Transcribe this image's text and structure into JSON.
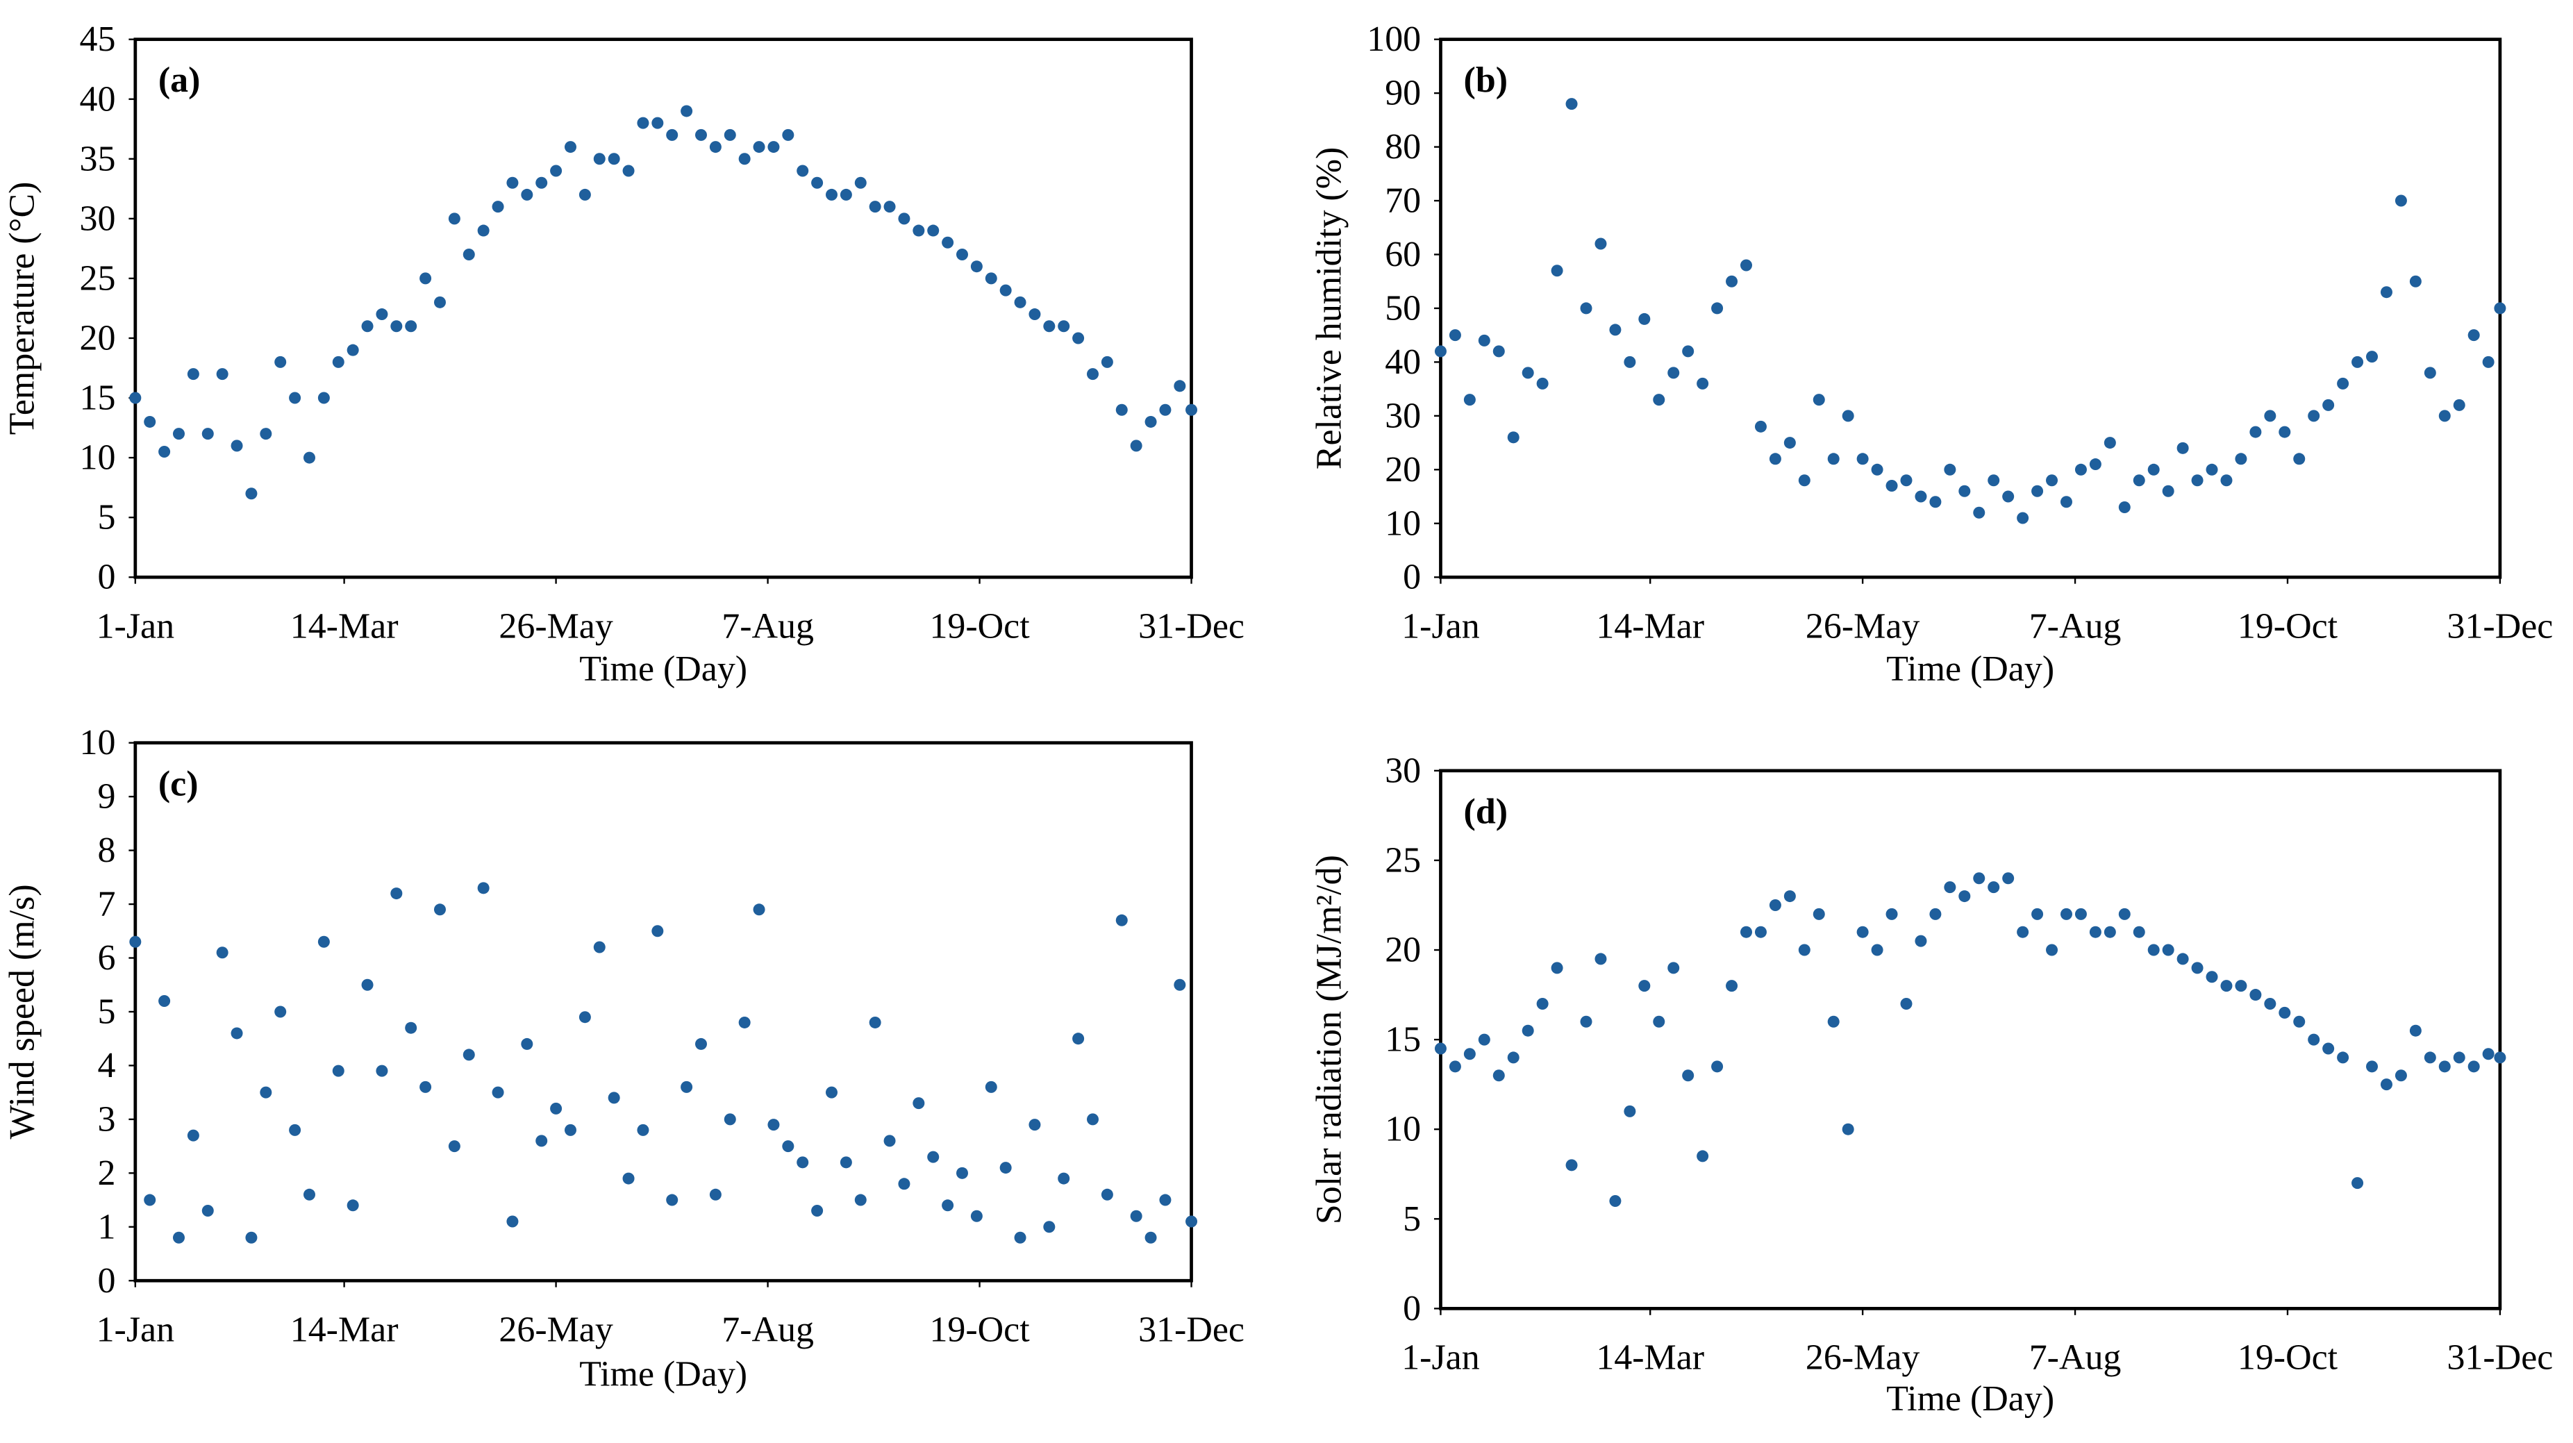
{
  "chart_data": [
    {
      "type": "scatter",
      "label": "(a)",
      "x_label": "Time (Day)",
      "y_label": "Temperature (°C)",
      "color": "#1f5f9c",
      "x": [
        1,
        6,
        11,
        16,
        21,
        26,
        31,
        36,
        41,
        46,
        51,
        56,
        61,
        66,
        71,
        76,
        81,
        86,
        91,
        96,
        101,
        106,
        111,
        116,
        121,
        126,
        131,
        136,
        141,
        146,
        151,
        156,
        161,
        166,
        171,
        176,
        181,
        186,
        191,
        196,
        201,
        206,
        211,
        216,
        221,
        226,
        231,
        236,
        241,
        246,
        251,
        256,
        261,
        266,
        271,
        276,
        281,
        286,
        291,
        296,
        301,
        306,
        311,
        316,
        321,
        326,
        331,
        336,
        341,
        346,
        351,
        356,
        361,
        365
      ],
      "values": [
        15,
        13,
        10.5,
        12,
        17,
        12,
        17,
        11,
        7,
        12,
        18,
        15,
        10,
        15,
        18,
        19,
        21,
        22,
        21,
        21,
        25,
        23,
        30,
        27,
        29,
        31,
        33,
        32,
        33,
        34,
        36,
        32,
        35,
        35,
        34,
        38,
        38,
        37,
        39,
        37,
        36,
        37,
        35,
        36,
        36,
        37,
        34,
        33,
        32,
        32,
        33,
        31,
        31,
        30,
        29,
        29,
        28,
        27,
        26,
        25,
        24,
        23,
        22,
        21,
        21,
        20,
        17,
        18,
        14,
        11,
        13,
        14,
        16,
        14
      ],
      "xlim": [
        1,
        365
      ],
      "ylim": [
        0,
        45
      ],
      "xticks": [
        {
          "value": 1,
          "label": "1-Jan"
        },
        {
          "value": 73,
          "label": "14-Mar"
        },
        {
          "value": 146,
          "label": "26-May"
        },
        {
          "value": 219,
          "label": "7-Aug"
        },
        {
          "value": 292,
          "label": "19-Oct"
        },
        {
          "value": 365,
          "label": "31-Dec"
        }
      ],
      "yticks": [
        0,
        5,
        10,
        15,
        20,
        25,
        30,
        35,
        40,
        45
      ]
    },
    {
      "type": "scatter",
      "label": "(b)",
      "x_label": "Time (Day)",
      "y_label": "Relative humidity (%)",
      "color": "#1f5f9c",
      "x": [
        1,
        6,
        11,
        16,
        21,
        26,
        31,
        36,
        41,
        46,
        51,
        56,
        61,
        66,
        71,
        76,
        81,
        86,
        91,
        96,
        101,
        106,
        111,
        116,
        121,
        126,
        131,
        136,
        141,
        146,
        151,
        156,
        161,
        166,
        171,
        176,
        181,
        186,
        191,
        196,
        201,
        206,
        211,
        216,
        221,
        226,
        231,
        236,
        241,
        246,
        251,
        256,
        261,
        266,
        271,
        276,
        281,
        286,
        291,
        296,
        301,
        306,
        311,
        316,
        321,
        326,
        331,
        336,
        341,
        346,
        351,
        356,
        361,
        365
      ],
      "values": [
        42,
        45,
        33,
        44,
        42,
        26,
        38,
        36,
        57,
        88,
        50,
        62,
        46,
        40,
        48,
        33,
        38,
        42,
        36,
        50,
        55,
        58,
        28,
        22,
        25,
        18,
        33,
        22,
        30,
        22,
        20,
        17,
        18,
        15,
        14,
        20,
        16,
        12,
        18,
        15,
        11,
        16,
        18,
        14,
        20,
        21,
        25,
        13,
        18,
        20,
        16,
        24,
        18,
        20,
        18,
        22,
        27,
        30,
        27,
        22,
        30,
        32,
        36,
        40,
        41,
        53,
        70,
        55,
        38,
        30,
        32,
        45,
        40,
        50
      ],
      "xlim": [
        1,
        365
      ],
      "ylim": [
        0,
        100
      ],
      "xticks": [
        {
          "value": 1,
          "label": "1-Jan"
        },
        {
          "value": 73,
          "label": "14-Mar"
        },
        {
          "value": 146,
          "label": "26-May"
        },
        {
          "value": 219,
          "label": "7-Aug"
        },
        {
          "value": 292,
          "label": "19-Oct"
        },
        {
          "value": 365,
          "label": "31-Dec"
        }
      ],
      "yticks": [
        0,
        10,
        20,
        30,
        40,
        50,
        60,
        70,
        80,
        90,
        100
      ]
    },
    {
      "type": "scatter",
      "label": "(c)",
      "x_label": "Time (Day)",
      "y_label": "Wind speed (m/s)",
      "color": "#1f5f9c",
      "x": [
        1,
        6,
        11,
        16,
        21,
        26,
        31,
        36,
        41,
        46,
        51,
        56,
        61,
        66,
        71,
        76,
        81,
        86,
        91,
        96,
        101,
        106,
        111,
        116,
        121,
        126,
        131,
        136,
        141,
        146,
        151,
        156,
        161,
        166,
        171,
        176,
        181,
        186,
        191,
        196,
        201,
        206,
        211,
        216,
        221,
        226,
        231,
        236,
        241,
        246,
        251,
        256,
        261,
        266,
        271,
        276,
        281,
        286,
        291,
        296,
        301,
        306,
        311,
        316,
        321,
        326,
        331,
        336,
        341,
        346,
        351,
        356,
        361,
        365
      ],
      "values": [
        6.3,
        1.5,
        5.2,
        0.8,
        2.7,
        1.3,
        6.1,
        4.6,
        0.8,
        3.5,
        5.0,
        2.8,
        1.6,
        6.3,
        3.9,
        1.4,
        5.5,
        3.9,
        7.2,
        4.7,
        3.6,
        6.9,
        2.5,
        4.2,
        7.3,
        3.5,
        1.1,
        4.4,
        2.6,
        3.2,
        2.8,
        4.9,
        6.2,
        3.4,
        1.9,
        2.8,
        6.5,
        1.5,
        3.6,
        4.4,
        1.6,
        3.0,
        4.8,
        6.9,
        2.9,
        2.5,
        2.2,
        1.3,
        3.5,
        2.2,
        1.5,
        4.8,
        2.6,
        1.8,
        3.3,
        2.3,
        1.4,
        2.0,
        1.2,
        3.6,
        2.1,
        0.8,
        2.9,
        1.0,
        1.9,
        4.5,
        3.0,
        1.6,
        6.7,
        1.2,
        0.8,
        1.5,
        5.5,
        1.1
      ],
      "xlim": [
        1,
        365
      ],
      "ylim": [
        0,
        10
      ],
      "xticks": [
        {
          "value": 1,
          "label": "1-Jan"
        },
        {
          "value": 73,
          "label": "14-Mar"
        },
        {
          "value": 146,
          "label": "26-May"
        },
        {
          "value": 219,
          "label": "7-Aug"
        },
        {
          "value": 292,
          "label": "19-Oct"
        },
        {
          "value": 365,
          "label": "31-Dec"
        }
      ],
      "yticks": [
        0,
        1,
        2,
        3,
        4,
        5,
        6,
        7,
        8,
        9,
        10
      ]
    },
    {
      "type": "scatter",
      "label": "(d)",
      "x_label": "Time (Day)",
      "y_label": "Solar radiation (MJ/m²/d)",
      "color": "#1f5f9c",
      "x": [
        1,
        6,
        11,
        16,
        21,
        26,
        31,
        36,
        41,
        46,
        51,
        56,
        61,
        66,
        71,
        76,
        81,
        86,
        91,
        96,
        101,
        106,
        111,
        116,
        121,
        126,
        131,
        136,
        141,
        146,
        151,
        156,
        161,
        166,
        171,
        176,
        181,
        186,
        191,
        196,
        201,
        206,
        211,
        216,
        221,
        226,
        231,
        236,
        241,
        246,
        251,
        256,
        261,
        266,
        271,
        276,
        281,
        286,
        291,
        296,
        301,
        306,
        311,
        316,
        321,
        326,
        331,
        336,
        341,
        346,
        351,
        356,
        361,
        365
      ],
      "values": [
        14.5,
        13.5,
        14.2,
        15,
        13,
        14,
        15.5,
        17,
        19,
        8,
        16,
        19.5,
        6,
        11,
        18,
        16,
        19,
        13,
        8.5,
        13.5,
        18,
        21,
        21,
        22.5,
        23,
        20,
        22,
        16,
        10,
        21,
        20,
        22,
        17,
        20.5,
        22,
        23.5,
        23,
        24,
        23.5,
        24,
        21,
        22,
        20,
        22,
        22,
        21,
        21,
        22,
        21,
        20,
        20,
        19.5,
        19,
        18.5,
        18,
        18,
        17.5,
        17,
        16.5,
        16,
        15,
        14.5,
        14,
        7,
        13.5,
        12.5,
        13,
        15.5,
        14,
        13.5,
        14,
        13.5,
        14.2,
        14
      ],
      "xlim": [
        1,
        365
      ],
      "ylim": [
        0,
        30
      ],
      "xticks": [
        {
          "value": 1,
          "label": "1-Jan"
        },
        {
          "value": 73,
          "label": "14-Mar"
        },
        {
          "value": 146,
          "label": "26-May"
        },
        {
          "value": 219,
          "label": "7-Aug"
        },
        {
          "value": 292,
          "label": "19-Oct"
        },
        {
          "value": 365,
          "label": "31-Dec"
        }
      ],
      "yticks": [
        0,
        5,
        10,
        15,
        20,
        25,
        30
      ]
    }
  ]
}
